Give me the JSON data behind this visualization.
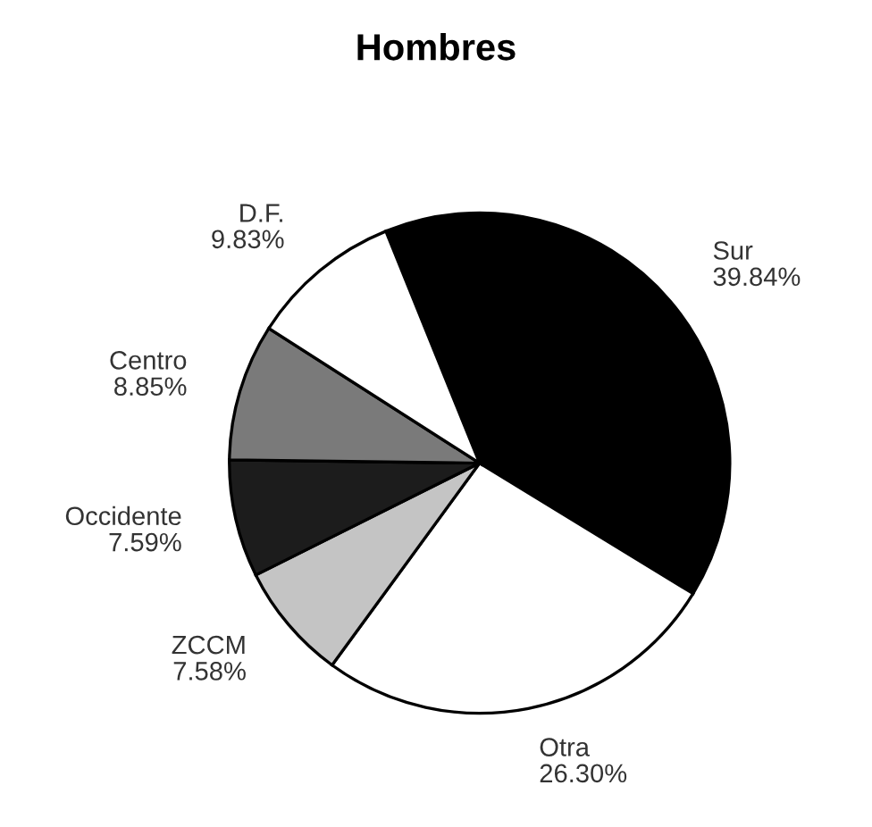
{
  "chart_data": {
    "type": "pie",
    "title": "Hombres",
    "categories": [
      "Sur",
      "Otra",
      "ZCCM",
      "Occidente",
      "Centro",
      "D.F."
    ],
    "values": [
      39.84,
      26.3,
      7.58,
      7.59,
      8.85,
      9.83
    ],
    "value_labels": [
      "39.84%",
      "26.30%",
      "7.58%",
      "7.59%",
      "8.85%",
      "9.83%"
    ],
    "colors": [
      "#000000",
      "#ffffff",
      "#c4c4c4",
      "#1c1c1c",
      "#7a7a7a",
      "#ffffff"
    ],
    "legend": false
  }
}
